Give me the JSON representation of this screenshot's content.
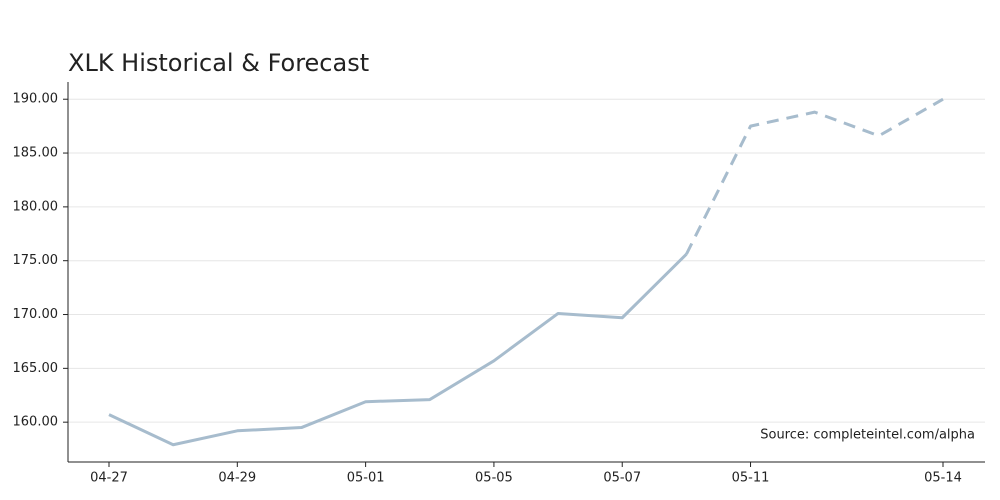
{
  "chart_data": {
    "type": "line",
    "title": "XLK Historical & Forecast",
    "annotation": "Source: completeintel.com/alpha",
    "categories": [
      "04-27",
      null,
      "04-29",
      null,
      "05-01",
      null,
      "05-05",
      null,
      "05-07",
      null,
      "05-11",
      null,
      null,
      "05-14"
    ],
    "series": [
      {
        "color": "#a7bccd",
        "dashed": false,
        "values": [
          160.7,
          157.9,
          159.2,
          159.5,
          161.9,
          162.1,
          165.7,
          170.1,
          169.7,
          175.6,
          null,
          null,
          null,
          null
        ]
      },
      {
        "color": "#a7bccd",
        "dashed": true,
        "values": [
          null,
          null,
          null,
          null,
          null,
          null,
          null,
          null,
          null,
          175.6,
          187.5,
          188.8,
          186.6,
          190.0
        ]
      }
    ],
    "ylim": [
      156.3,
      191.6
    ],
    "yticks": [
      {
        "value": 160,
        "label": "160.00"
      },
      {
        "value": 165,
        "label": "165.00"
      },
      {
        "value": 170,
        "label": "170.00"
      },
      {
        "value": 175,
        "label": "175.00"
      },
      {
        "value": 180,
        "label": "180.00"
      },
      {
        "value": 185,
        "label": "185.00"
      },
      {
        "value": 190,
        "label": "190.00"
      }
    ],
    "grid": true
  }
}
